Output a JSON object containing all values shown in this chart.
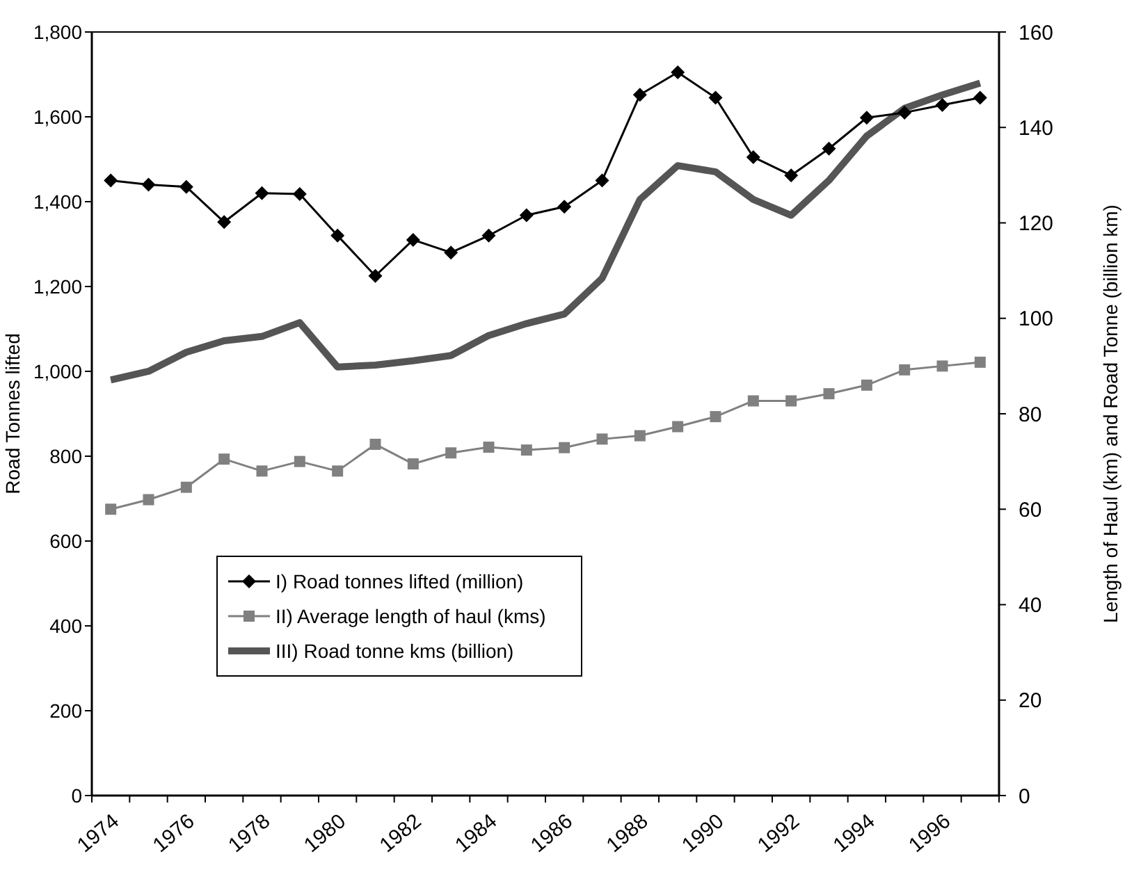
{
  "chart_data": {
    "type": "line",
    "ylabel": "Road Tonnes lifted",
    "y2label": "Length of Haul (km) and Road Tonne (billion km)",
    "categories": [
      "1974",
      null,
      "1976",
      null,
      "1978",
      null,
      "1980",
      null,
      "1982",
      null,
      "1984",
      null,
      "1986",
      null,
      "1988",
      null,
      "1990",
      null,
      "1992",
      null,
      "1994",
      null,
      "1996",
      null
    ],
    "ylim": [
      0,
      1800
    ],
    "yticks": [
      {
        "value": 0,
        "label": "0"
      },
      {
        "value": 200,
        "label": "200"
      },
      {
        "value": 400,
        "label": "400"
      },
      {
        "value": 600,
        "label": "600"
      },
      {
        "value": 800,
        "label": "800"
      },
      {
        "value": 1000,
        "label": "1,000"
      },
      {
        "value": 1200,
        "label": "1,200"
      },
      {
        "value": 1400,
        "label": "1,400"
      },
      {
        "value": 1600,
        "label": "1,600"
      },
      {
        "value": 1800,
        "label": "1,800"
      }
    ],
    "y2lim": [
      0,
      160
    ],
    "y2ticks": [
      0,
      20,
      40,
      60,
      80,
      100,
      120,
      140,
      160
    ],
    "grid": false,
    "legend": "bottom left",
    "series": [
      {
        "name": "I) Road tonnes lifted (million)",
        "color": "#000000",
        "marker": "diamond",
        "values": [
          1450,
          1440,
          1435,
          1352,
          1420,
          1418,
          1320,
          1225,
          1310,
          1280,
          1320,
          1368,
          1388,
          1450,
          1652,
          1705,
          1645,
          1505,
          1462,
          1525,
          1598,
          1610,
          1628,
          1645
        ]
      },
      {
        "name": "II) Average length of haul (kms)",
        "color": "#808080",
        "marker": "square",
        "axis": "y2",
        "values": [
          60,
          62,
          64.6,
          70.5,
          68,
          70,
          68,
          73.6,
          69.5,
          71.8,
          73,
          72.4,
          72.9,
          74.7,
          75.4,
          77.3,
          79.4,
          82.7,
          82.7,
          84.2,
          86,
          89.2,
          90,
          90.8
        ]
      },
      {
        "name": "III) Road tonne kms (billion)",
        "color": "#555555",
        "marker": "none",
        "axis": "y2",
        "values": [
          87.1,
          88.9,
          92.9,
          95.3,
          96.2,
          99.1,
          89.8,
          90.2,
          91.1,
          92.2,
          96.4,
          98.9,
          100.9,
          108.4,
          124.9,
          132,
          130.7,
          124.9,
          121.6,
          128.9,
          138.2,
          144,
          146.8,
          149.3
        ]
      }
    ]
  }
}
